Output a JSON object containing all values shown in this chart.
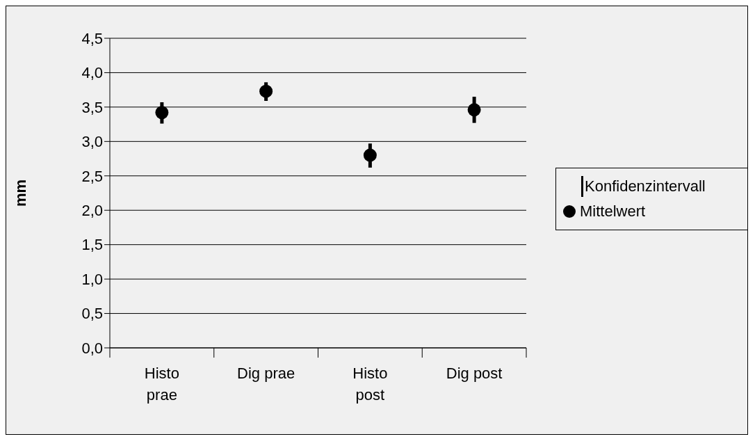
{
  "chart_data": {
    "type": "scatter",
    "ylabel": "mm",
    "categories": [
      "Histo prae",
      "Dig prae",
      "Histo post",
      "Dig post"
    ],
    "series": [
      {
        "name": "Mittelwert",
        "color": "#000000",
        "values": [
          3.42,
          3.73,
          2.8,
          3.46
        ],
        "errors": [
          [
            3.26,
            3.57
          ],
          [
            3.59,
            3.86
          ],
          [
            2.62,
            2.97
          ],
          [
            3.27,
            3.65
          ]
        ]
      }
    ],
    "ylim": [
      0,
      4.5
    ],
    "yticks": [
      {
        "value": 0,
        "label": "0,0"
      },
      {
        "value": 0.5,
        "label": "0,5"
      },
      {
        "value": 1,
        "label": "1,0"
      },
      {
        "value": 1.5,
        "label": "1,5"
      },
      {
        "value": 2,
        "label": "2,0"
      },
      {
        "value": 2.5,
        "label": "2,5"
      },
      {
        "value": 3,
        "label": "3,0"
      },
      {
        "value": 3.5,
        "label": "3,5"
      },
      {
        "value": 4,
        "label": "4,0"
      },
      {
        "value": 4.5,
        "label": "4,5"
      }
    ],
    "grid": "y",
    "legend": "right",
    "marker": "circle",
    "annotations": [
      "Konfidenzintervall"
    ]
  }
}
